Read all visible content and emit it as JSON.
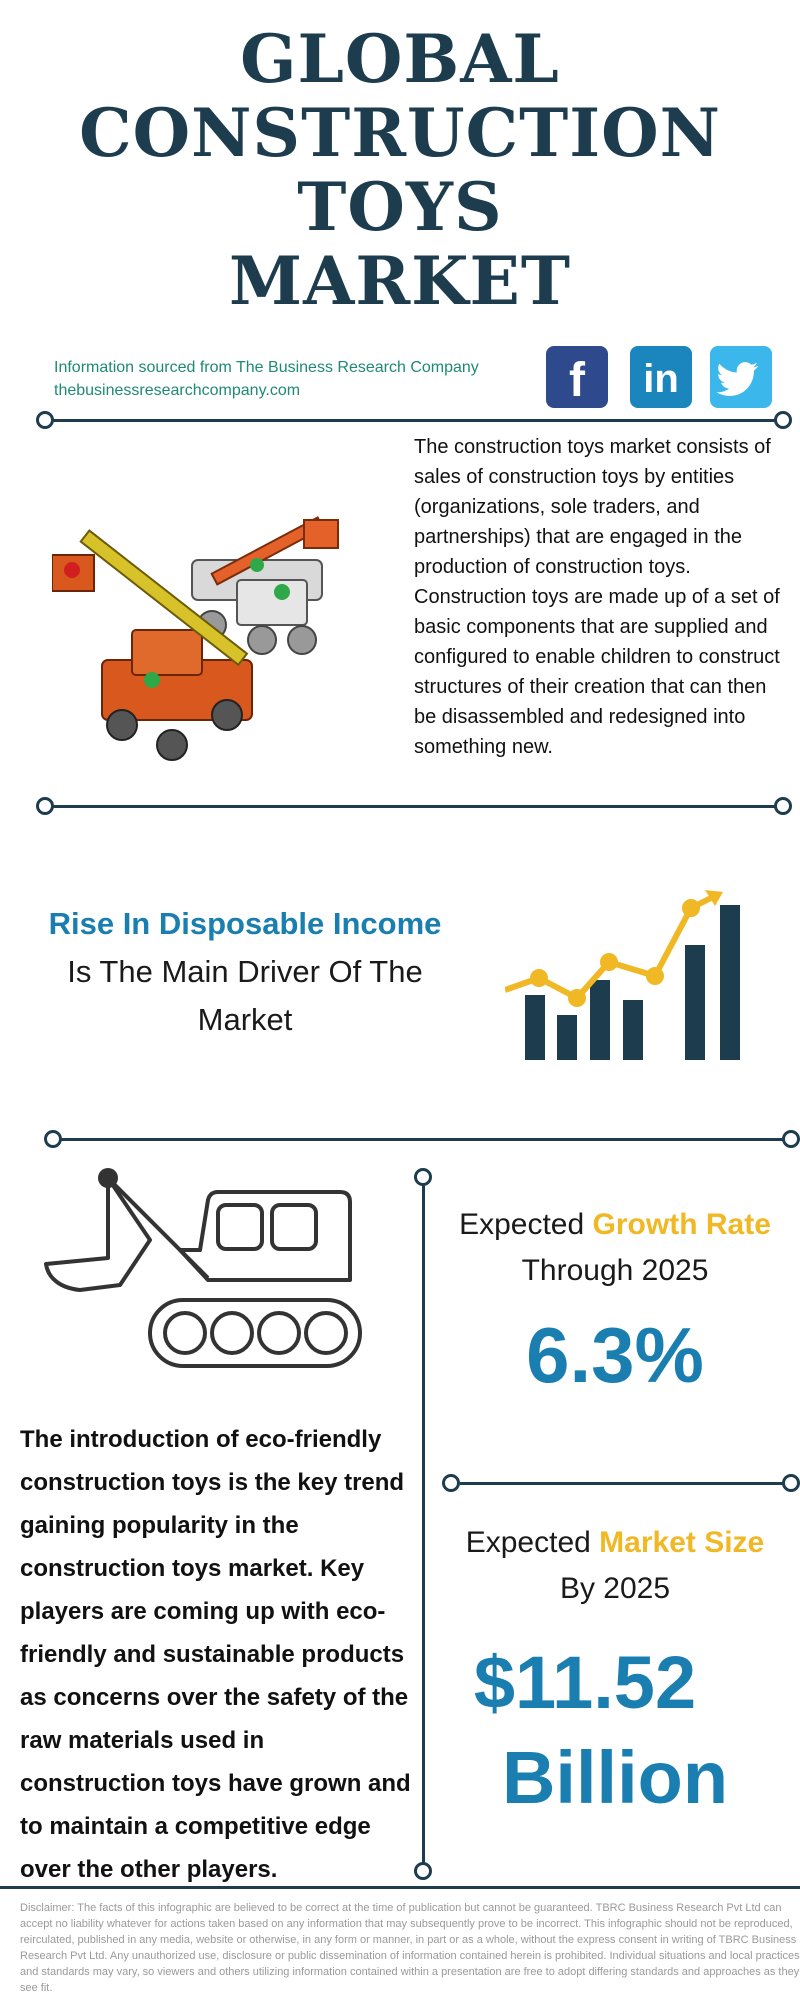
{
  "header": {
    "title_lines": [
      "GLOBAL",
      "CONSTRUCTION",
      "TOYS",
      "MARKET"
    ],
    "source_line": "Information sourced from The Business Research Company",
    "source_url": "thebusinessresearchcompany.com"
  },
  "social": {
    "facebook": "f",
    "linkedin": "in",
    "twitter_icon": "twitter-bird-icon"
  },
  "intro": {
    "description": "The construction toys market consists of sales of construction toys by entities (organizations, sole traders, and partnerships) that are engaged in the production of construction toys. Construction toys are made up of a set of basic components that are supplied and configured to enable children to construct structures of their creation that can then be disassembled and redesigned into something new."
  },
  "driver": {
    "highlight": "Rise In Disposable Income",
    "rest": "Is The Main Driver Of The Market"
  },
  "trend": {
    "text": "The introduction of eco-friendly construction toys is the key trend gaining popularity in the construction toys market. Key players are coming up with eco-friendly and sustainable products as concerns over the safety of the raw materials used in construction toys have grown and to maintain a competitive edge over the other players."
  },
  "growth": {
    "prefix": "Expected",
    "highlight": "Growth Rate",
    "suffix": "Through 2025",
    "value": "6.3%"
  },
  "market_size": {
    "prefix": "Expected",
    "highlight": "Market Size",
    "suffix": "By 2025",
    "value_line1": "$11.52",
    "value_line2": "Billion"
  },
  "disclaimer": "Disclaimer: The facts of this infographic are believed to be correct at the time of publication but cannot be guaranteed. TBRC Business Research Pvt Ltd can accept no liability whatever for actions taken based on any information that may subsequently prove to be incorrect. This infographic should not be reproduced, reirculated, published in any media, website or otherwise, in any form or manner, in part or as a whole, without the express consent in writing of TBRC Business Research Pvt Ltd. Any unauthorized use, disclosure or public dissemination of information contained herein is prohibited. Individual situations and local practices and standards may vary, so viewers and others utilizing information contained within a presentation are free to adopt differing standards and approaches as they see fit.",
  "colors": {
    "navy": "#1d3d4f",
    "blue": "#1a7fb0",
    "yellow": "#f0b825",
    "green_text": "#1f8a73"
  }
}
